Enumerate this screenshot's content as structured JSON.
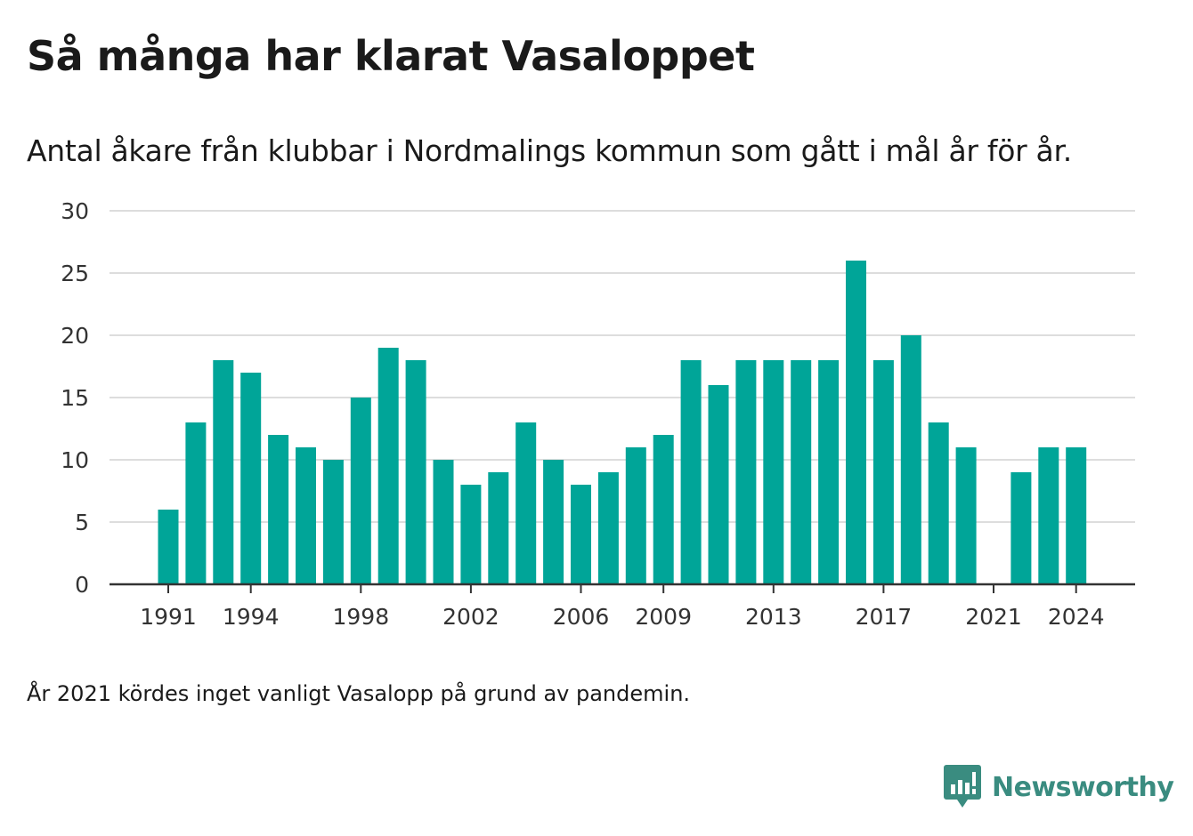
{
  "title": "Så många har klarat Vasaloppet",
  "subtitle": "Antal åkare från klubbar i Nordmalings kommun som gått i mål år för år.",
  "footnote": "År 2021 kördes inget vanligt Vasalopp på grund av pandemin.",
  "brand": {
    "name": "Newsworthy",
    "icon": "newsworthy-logo-icon",
    "color": "#3a8c80"
  },
  "colors": {
    "bar": "#00a598",
    "grid": "#dddddd",
    "axis": "#333333",
    "text": "#333333"
  },
  "chart_data": {
    "type": "bar",
    "title": "",
    "xlabel": "",
    "ylabel": "",
    "ylim": [
      0,
      30
    ],
    "yticks": [
      0,
      5,
      10,
      15,
      20,
      25,
      30
    ],
    "xticks": [
      1991,
      1994,
      1998,
      2002,
      2006,
      2009,
      2013,
      2017,
      2021,
      2024
    ],
    "grid": true,
    "categories": [
      1991,
      1992,
      1993,
      1994,
      1995,
      1996,
      1997,
      1998,
      1999,
      2000,
      2001,
      2002,
      2003,
      2004,
      2005,
      2006,
      2007,
      2008,
      2009,
      2010,
      2011,
      2012,
      2013,
      2014,
      2015,
      2016,
      2017,
      2018,
      2019,
      2020,
      2021,
      2022,
      2023,
      2024
    ],
    "values": [
      6,
      13,
      18,
      17,
      12,
      11,
      10,
      15,
      19,
      18,
      10,
      8,
      9,
      13,
      10,
      8,
      9,
      11,
      12,
      18,
      16,
      18,
      18,
      18,
      18,
      26,
      18,
      20,
      13,
      11,
      null,
      9,
      11,
      11
    ]
  }
}
